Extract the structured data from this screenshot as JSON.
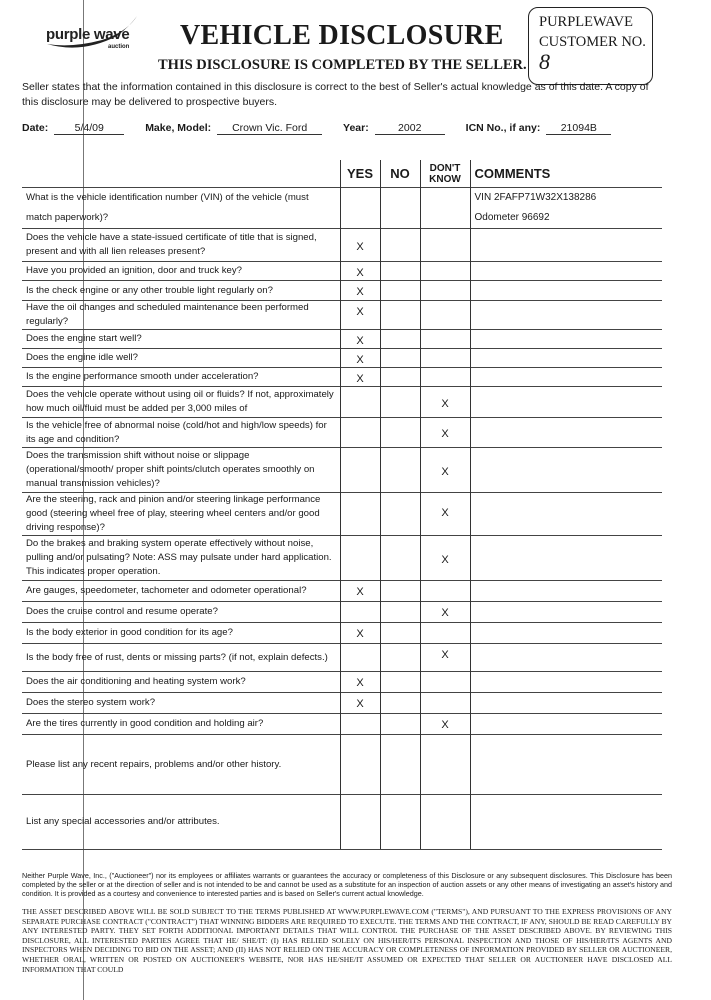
{
  "logo": {
    "name": "purple wave",
    "sub": "auction"
  },
  "header": {
    "title": "VEHICLE DISCLOSURE",
    "subtitle": "THIS DISCLOSURE IS COMPLETED BY THE SELLER.",
    "customer_box": {
      "line1": "PURPLEWAVE",
      "line2": "CUSTOMER NO.",
      "value": "8"
    }
  },
  "intro": "Seller states that the information contained in this disclosure is correct to the best of Seller's actual knowledge as of this date. A copy of this disclosure may be delivered to prospective buyers.",
  "fields": {
    "date_label": "Date:",
    "date": "5/4/09",
    "make_label": "Make, Model:",
    "make": "Crown Vic. Ford",
    "year_label": "Year:",
    "year": "2002",
    "icn_label": "ICN No., if any:",
    "icn": "21094B"
  },
  "table": {
    "headers": {
      "yes": "YES",
      "no": "NO",
      "dont_know": "DON'T KNOW",
      "comments": "COMMENTS"
    },
    "rows": [
      {
        "q": "What is the vehicle identification number (VIN) of the vehicle (must match paperwork)?",
        "a": "",
        "comments": [
          "VIN  2FAFP71W32X138286",
          "Odometer  96692"
        ]
      },
      {
        "q": "Does the vehicle have a state-issued certificate of title that is signed, present and with all lien releases present?",
        "a": "yes"
      },
      {
        "q": "Have you provided an ignition, door and truck key?",
        "a": "yes"
      },
      {
        "q": "Is the check engine or any other trouble light regularly on?",
        "a": "yes"
      },
      {
        "q": "Have the oil changes and scheduled maintenance been performed regularly?",
        "a": "yes"
      },
      {
        "q": "Does the engine start well?",
        "a": "yes"
      },
      {
        "q": "Does the engine idle well?",
        "a": "yes"
      },
      {
        "q": "Is the engine performance smooth under acceleration?",
        "a": "yes"
      },
      {
        "q": "Does the vehicle operate without using oil or fluids? If not, approximately how much oil/fluid must be added per 3,000 miles of",
        "a": "dont_know"
      },
      {
        "q": "Is the vehicle free of abnormal noise (cold/hot and high/low speeds) for its age and condition?",
        "a": "dont_know"
      },
      {
        "q": "Does the transmission shift without noise or slippage (operational/smooth/ proper shift points/clutch operates smoothly on manual transmission vehicles)?",
        "a": "dont_know"
      },
      {
        "q": "Are the steering, rack and pinion and/or steering linkage performance good (steering wheel free of play, steering wheel centers and/or good driving response)?",
        "a": "dont_know"
      },
      {
        "q": "Do the brakes and braking system operate effectively without noise, pulling and/or pulsating? Note: ASS may pulsate under hard application. This indicates proper operation.",
        "a": "dont_know"
      },
      {
        "q": "Are gauges, speedometer, tachometer and odometer operational?",
        "a": "yes"
      },
      {
        "q": "Does the cruise control and resume operate?",
        "a": "dont_know"
      },
      {
        "q": "Is the body exterior in good condition for its age?",
        "a": "yes"
      },
      {
        "q": "Is the body free of rust, dents or missing parts? (if not, explain defects.)",
        "a": "dont_know"
      },
      {
        "q": "Does the air conditioning and heating system work?",
        "a": "yes"
      },
      {
        "q": "Does the stereo system work?",
        "a": "yes"
      },
      {
        "q": "Are the tires currently in good condition and holding air?",
        "a": "dont_know"
      },
      {
        "q": "Please list any recent repairs, problems and/or other history.",
        "a": ""
      },
      {
        "q": "List any special accessories and/or attributes.",
        "a": ""
      }
    ],
    "mark": "X"
  },
  "disclaimer": "Neither Purple Wave, Inc., (\"Auctioneer\") nor its employees or affiliates warrants or guarantees the accuracy or completeness of this Disclosure or any subsequent disclosures. This Disclosure has been completed by the seller or at the direction of seller and is not intended to be and cannot be used as a substitute for an inspection of auction assets or any other means of investigating an asset's history and condition. It is provided as a courtesy and convenience to interested parties and is based on Seller's current actual knowledge.",
  "legal": "THE ASSET DESCRIBED ABOVE WILL BE SOLD SUBJECT TO THE TERMS PUBLISHED AT WWW.PURPLEWAVE.COM (\"TERMS\"), AND PURSUANT TO THE EXPRESS PROVISIONS OF ANY SEPARATE PURCHASE CONTRACT (\"CONTRACT\") THAT WINNING BIDDERS ARE REQUIRED TO EXECUTE. THE TERMS AND THE CONTRACT, IF ANY, SHOULD BE READ CAREFULLY BY ANY INTERESTED PARTY. THEY SET FORTH ADDITIONAL IMPORTANT DETAILS THAT WILL CONTROL THE PURCHASE OF THE ASSET DESCRIBED ABOVE. BY REVIEWING THIS DISCLOSURE, ALL INTERESTED PARTIES AGREE THAT HE/ SHE/IT: (I) HAS RELIED SOLELY ON HIS/HER/ITS PERSONAL INSPECTION AND THOSE OF HIS/HER/ITS AGENTS AND INSPECTORS WHEN DECIDING TO BID ON THE ASSET; AND (II) HAS NOT RELIED ON THE ACCURACY OR COMPLETENESS OF INFORMATION PROVIDED BY SELLER OR AUCTIONEER, WHETHER ORAL, WRITTEN OR POSTED ON AUCTIONEER'S WEBSITE, NOR HAS HE/SHE/IT ASSUMED OR EXPECTED THAT SELLER OR AUCTIONEER HAVE DISCLOSED ALL INFORMATION THAT COULD"
}
